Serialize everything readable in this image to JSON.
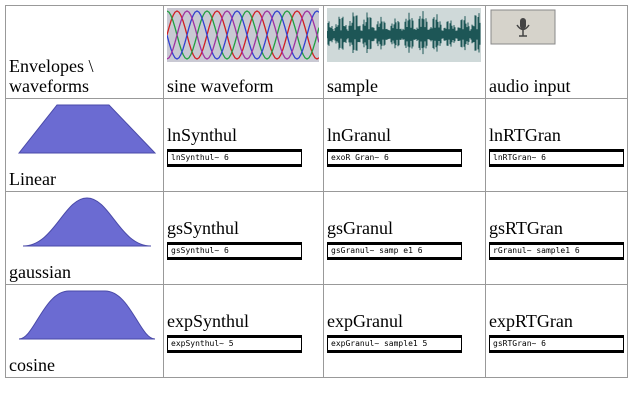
{
  "table": {
    "header": [
      "Envelopes \\ waveforms",
      "sine waveform",
      "sample",
      "audio input"
    ],
    "rows": [
      {
        "envelope": "Linear",
        "cells": [
          {
            "name": "lnSynthul",
            "patch": "lnSynthul~ 6"
          },
          {
            "name": "lnGranul",
            "patch": "exoR Gran~ 6"
          },
          {
            "name": "lnRTGran",
            "patch": "lnRTGran~ 6"
          }
        ]
      },
      {
        "envelope": "gaussian",
        "cells": [
          {
            "name": "gsSynthul",
            "patch": "gsSynthul~ 6"
          },
          {
            "name": "gsGranul",
            "patch": "gsGranul~ samp e1 6"
          },
          {
            "name": "gsRTGran",
            "patch": "rGranul~ sample1 6"
          }
        ]
      },
      {
        "envelope": "cosine",
        "cells": [
          {
            "name": "expSynthul",
            "patch": "expSynthul~ 5"
          },
          {
            "name": "expGranul",
            "patch": "expGranul~ sample1 5"
          },
          {
            "name": "expRTGran",
            "patch": "gsRTGran~ 6"
          }
        ]
      }
    ]
  }
}
